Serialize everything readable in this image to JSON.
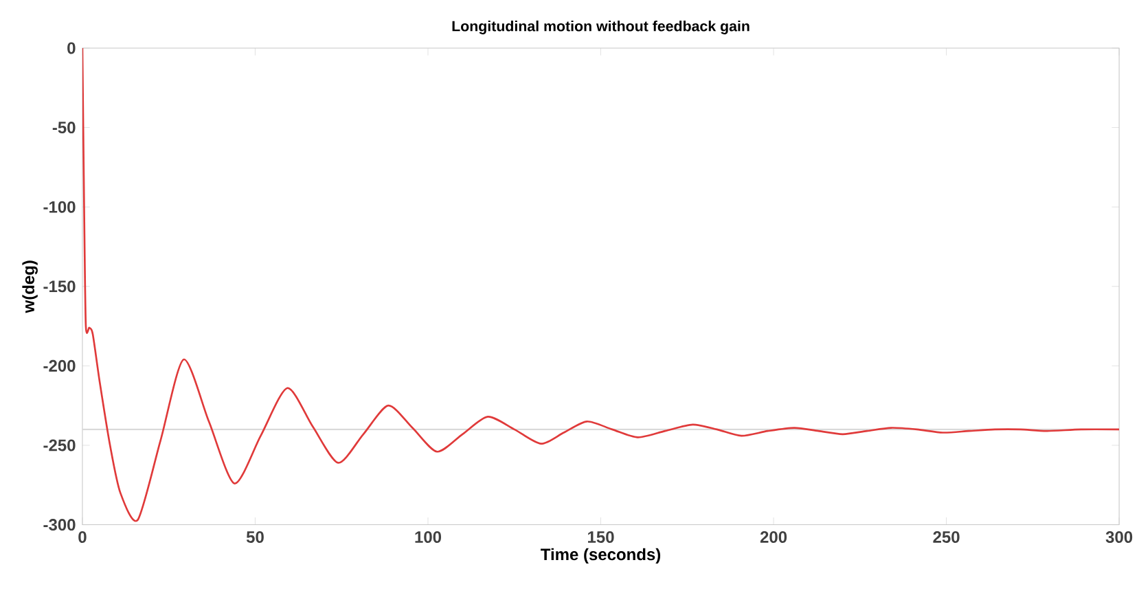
{
  "chart_data": {
    "type": "line",
    "title": "Longitudinal motion without feedback gain",
    "xlabel": "Time (seconds)",
    "ylabel": "w(deg)",
    "xlim": [
      0,
      300
    ],
    "ylim": [
      -300,
      0
    ],
    "xticks": [
      0,
      50,
      100,
      150,
      200,
      250,
      300
    ],
    "yticks": [
      -300,
      -250,
      -200,
      -150,
      -100,
      -50,
      0
    ],
    "grid": false,
    "marker": "none",
    "line_style": "solid",
    "ref_lines": [
      {
        "axis": "y",
        "value": -240,
        "color": "#d9d9d9"
      }
    ],
    "series": [
      {
        "color": "#e03a3a",
        "x": [
          0,
          0.5,
          1,
          2,
          3,
          5,
          8,
          11,
          16,
          22.6,
          29.3,
          36.6,
          44,
          51.6,
          59.3,
          66.6,
          74,
          81.3,
          88.5,
          95.5,
          102.6,
          110,
          117.3,
          125,
          132.7,
          139.3,
          146,
          153.3,
          160.7,
          168.6,
          176.6,
          183.6,
          190.7,
          198.3,
          206,
          213,
          220,
          227,
          234,
          241.5,
          249,
          256.5,
          264,
          271.5,
          279,
          289,
          300
        ],
        "values": [
          0,
          -100,
          -175,
          -176,
          -180,
          -210,
          -250,
          -280,
          -297,
          -247,
          -196,
          -235,
          -274,
          -244,
          -214,
          -238,
          -261,
          -243,
          -225,
          -239,
          -254,
          -243,
          -232,
          -240,
          -249,
          -242,
          -235,
          -240,
          -245,
          -241,
          -237,
          -240,
          -244,
          -241,
          -239,
          -241,
          -243,
          -241,
          -239,
          -240,
          -242,
          -241,
          -240,
          -240,
          -241,
          -240,
          -240
        ]
      }
    ]
  }
}
